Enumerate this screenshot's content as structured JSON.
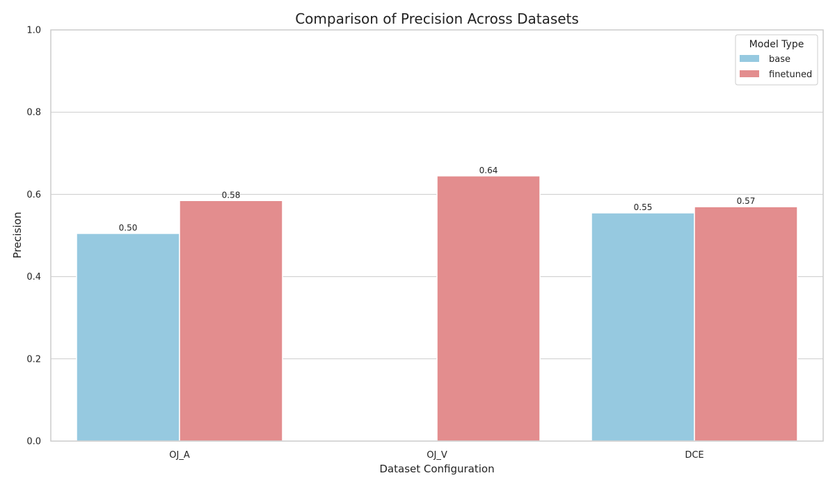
{
  "chart_data": {
    "type": "bar",
    "title": "Comparison of Precision Across Datasets",
    "xlabel": "Dataset Configuration",
    "ylabel": "Precision",
    "ylim": [
      0,
      1.0
    ],
    "yticks": [
      "0.0",
      "0.2",
      "0.4",
      "0.6",
      "0.8",
      "1.0"
    ],
    "grid": "horizontal",
    "legend_placement": "top-right",
    "categories": [
      "OJ_A",
      "OJ_V",
      "DCE"
    ],
    "legend_title": "Model Type",
    "series": [
      {
        "name": "base",
        "color": "#96c9e0",
        "values": [
          0.505,
          null,
          0.555
        ],
        "labels": [
          "0.50",
          "",
          "0.55"
        ]
      },
      {
        "name": "finetuned",
        "color": "#e38d8e",
        "values": [
          0.585,
          0.645,
          0.57
        ],
        "labels": [
          "0.58",
          "0.64",
          "0.57"
        ]
      }
    ]
  }
}
